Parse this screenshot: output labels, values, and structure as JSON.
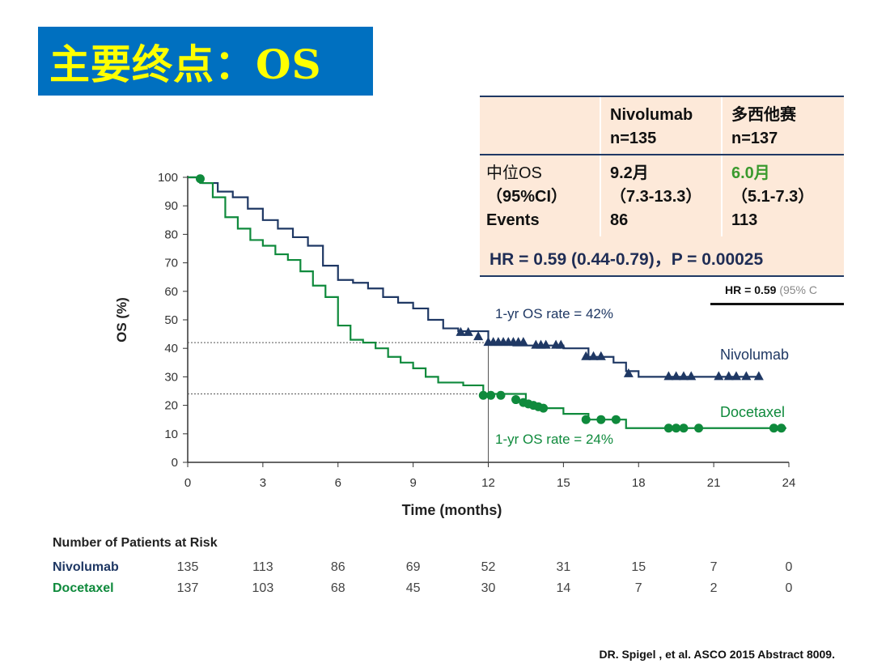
{
  "slide": {
    "title": "主要终点：OS",
    "citation": "DR. Spigel , et al. ASCO 2015 Abstract 8009.",
    "colors": {
      "title_bg": "#0070c0",
      "title_text": "#ffff00",
      "nivolumab": "#1f3864",
      "docetaxel": "#0f8a3c"
    }
  },
  "summary_table": {
    "header": {
      "col1_line1": "Nivolumab",
      "col1_line2": "n=135",
      "col2_line1": "多西他赛",
      "col2_line2": "n=137"
    },
    "row_labels": {
      "line1": "中位OS",
      "line2": "（95%CI）",
      "line3": "Events"
    },
    "nivolumab": {
      "median": "9.2月",
      "ci": "（7.3-13.3）",
      "events": "86"
    },
    "docetaxel": {
      "median": "6.0月",
      "ci": "（5.1-7.3）",
      "events": "113"
    },
    "hr_text": "HR =  0.59 (0.44-0.79)，P = 0.00025",
    "partial_hr": {
      "prefix": "HR = ",
      "value": "0.59",
      "suffix": " (95% C"
    }
  },
  "chart_data": {
    "type": "line",
    "xlabel": "Time (months)",
    "ylabel": "OS (%)",
    "xlim": [
      0,
      24
    ],
    "ylim": [
      0,
      100
    ],
    "xticks": [
      0,
      3,
      6,
      9,
      12,
      15,
      18,
      21,
      24
    ],
    "yticks": [
      0,
      10,
      20,
      30,
      40,
      50,
      60,
      70,
      80,
      90,
      100
    ],
    "grid": false,
    "annotations": [
      {
        "text": "1-yr OS rate = 42%",
        "x": 12,
        "y": 42,
        "series": "Nivolumab"
      },
      {
        "text": "1-yr OS rate = 24%",
        "x": 12,
        "y": 24,
        "series": "Docetaxel"
      }
    ],
    "series": [
      {
        "name": "Nivolumab",
        "color": "#1f3864",
        "censor_marker": "triangle",
        "x": [
          0,
          0.6,
          1.2,
          1.8,
          2.4,
          3,
          3.6,
          4.2,
          4.8,
          5.4,
          6,
          6.6,
          7.2,
          7.8,
          8.4,
          9,
          9.6,
          10.2,
          10.8,
          12,
          13,
          14,
          15,
          16,
          17,
          17.5,
          18,
          19,
          20,
          21,
          22,
          22.9
        ],
        "y": [
          100,
          98,
          95,
          93,
          89,
          85,
          82,
          79,
          76,
          69,
          64,
          63,
          61,
          58,
          56,
          54,
          50,
          47,
          46,
          42,
          41,
          41,
          40,
          37,
          35,
          32,
          30,
          30,
          30,
          30,
          30,
          30
        ],
        "censors_x": [
          10.9,
          11.2,
          11.6,
          12.0,
          12.2,
          12.4,
          12.6,
          12.8,
          13.0,
          13.2,
          13.4,
          13.9,
          14.1,
          14.3,
          14.7,
          14.9,
          15.9,
          16.2,
          16.5,
          17.6,
          19.2,
          19.5,
          19.8,
          20.1,
          21.2,
          21.6,
          21.9,
          22.3,
          22.8
        ],
        "censors_y": [
          45.5,
          45.5,
          44,
          42,
          42,
          42,
          42,
          42,
          42,
          42,
          42,
          41,
          41,
          41,
          41,
          41,
          37,
          37,
          37,
          31,
          30,
          30,
          30,
          30,
          30,
          30,
          30,
          30,
          30
        ]
      },
      {
        "name": "Docetaxel",
        "color": "#0f8a3c",
        "censor_marker": "circle",
        "x": [
          0,
          0.5,
          1,
          1.5,
          2,
          2.5,
          3,
          3.5,
          4,
          4.5,
          5,
          5.5,
          6,
          6.5,
          7,
          7.5,
          8,
          8.5,
          9,
          9.5,
          10,
          11,
          11.8,
          12.5,
          13.5,
          14,
          15,
          16,
          17,
          17.5,
          18,
          19,
          20,
          21,
          22,
          23,
          23.9
        ],
        "y": [
          100,
          98,
          93,
          86,
          82,
          78,
          76,
          73,
          71,
          67,
          62,
          58,
          48,
          43,
          42,
          40,
          37,
          35,
          33,
          30,
          28,
          27,
          24,
          24,
          20,
          19,
          17,
          15,
          15,
          12,
          12,
          12,
          12,
          12,
          12,
          12,
          12
        ],
        "censors_x": [
          0.5,
          11.8,
          12.1,
          12.5,
          13.1,
          13.4,
          13.6,
          13.8,
          14.0,
          14.2,
          15.9,
          16.5,
          17.1,
          19.2,
          19.5,
          19.8,
          20.4,
          23.4,
          23.7
        ],
        "censors_y": [
          99.5,
          23.5,
          23.5,
          23.5,
          22,
          21,
          20.5,
          20,
          19.5,
          19,
          15,
          15,
          15,
          12,
          12,
          12,
          12,
          12,
          12
        ]
      }
    ]
  },
  "risk_table": {
    "title": "Number of Patients at Risk",
    "rows": [
      {
        "label": "Nivolumab",
        "color": "#1f3864",
        "values": [
          "135",
          "113",
          "86",
          "69",
          "52",
          "31",
          "15",
          "7",
          "0"
        ]
      },
      {
        "label": "Docetaxel",
        "color": "#0f8a3c",
        "values": [
          "137",
          "103",
          "68",
          "45",
          "30",
          "14",
          "7",
          "2",
          "0"
        ]
      }
    ]
  }
}
